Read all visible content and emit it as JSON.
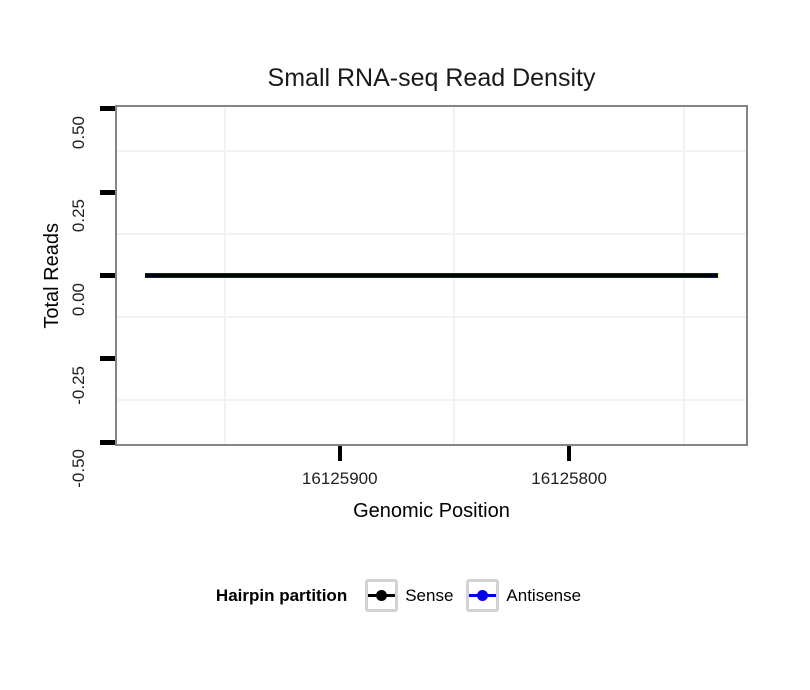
{
  "chart_data": {
    "type": "line",
    "title": "Small RNA-seq Read Density",
    "xlabel": "Genomic Position",
    "ylabel": "Total Reads",
    "x_axis": {
      "ticks": [
        16125900,
        16125800
      ],
      "tick_labels": [
        "16125900",
        "16125800"
      ],
      "minor_gridlines": [
        16125950,
        16125850,
        16125750
      ],
      "range": [
        16125998,
        16125722
      ],
      "reversed": true
    },
    "y_axis": {
      "ticks": [
        0.5,
        0.25,
        0,
        -0.25,
        -0.5
      ],
      "tick_labels": [
        "0.50",
        "0.25",
        "0.00",
        "-0.25",
        "-0.50"
      ],
      "minor_gridlines": [
        0.375,
        0.125,
        -0.125,
        -0.375
      ],
      "range": [
        -0.512,
        0.512
      ],
      "grid": "minor-only"
    },
    "series": [
      {
        "name": "Sense",
        "color": "#000000",
        "x": [
          16125985,
          16125735
        ],
        "y": [
          0,
          0
        ]
      },
      {
        "name": "Antisense",
        "color": "#0000ee",
        "x": [
          16125985,
          16125735
        ],
        "y": [
          0,
          0
        ]
      }
    ],
    "legend": {
      "title": "Hairpin partition",
      "position": "bottom"
    }
  },
  "colors": {
    "background": "#ffffff",
    "panel_border": "#858585",
    "gridline_minor": "#f2f2f2",
    "tick_mark": "#000000",
    "tick_label": "#1f1f1f",
    "legend_key_border": "#d2d2d2"
  }
}
